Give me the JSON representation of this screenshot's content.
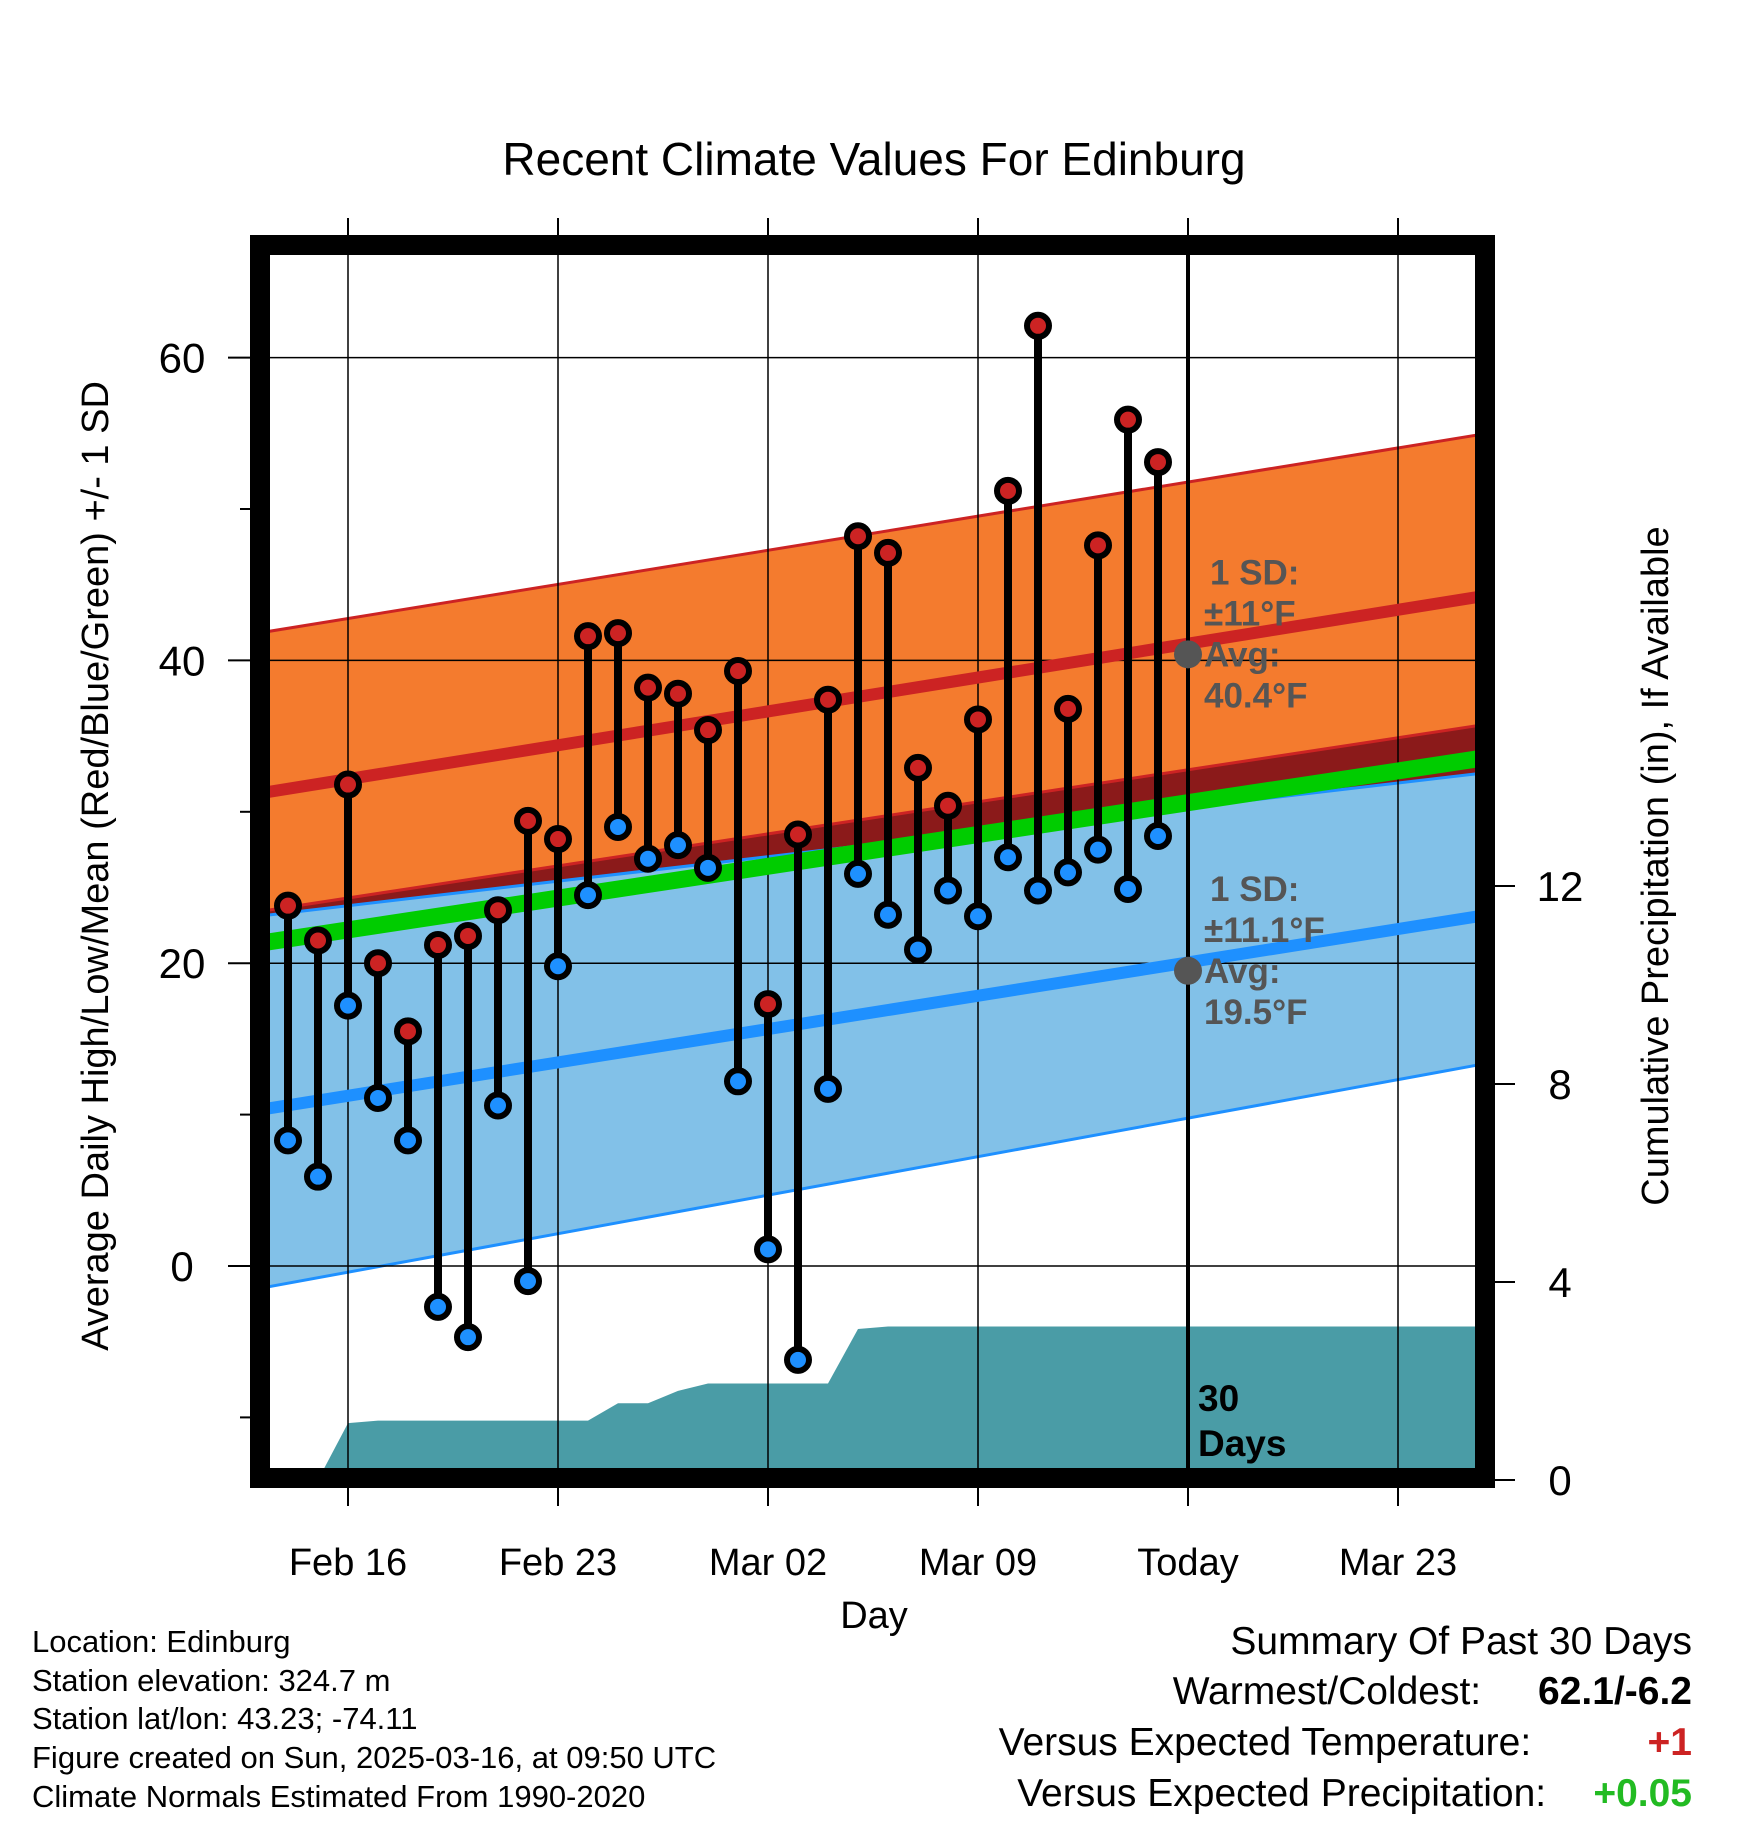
{
  "chart_data": {
    "type": "line",
    "title": "Recent Climate Values For Edinburg",
    "xlabel": "Day",
    "ylabel": "Average Daily High/Low/Mean (Red/Blue/Green) +/- 1 SD",
    "y2label": "Cumulative Precipitation (in), If Available",
    "xlim": [
      -3,
      38
    ],
    "ylim": [
      -14,
      68
    ],
    "y2lim": [
      0,
      17.4
    ],
    "x_ticks": [
      {
        "x": 0,
        "label": "Feb 16"
      },
      {
        "x": 7,
        "label": "Feb 23"
      },
      {
        "x": 14,
        "label": "Mar 02"
      },
      {
        "x": 21,
        "label": "Mar 09"
      },
      {
        "x": 28,
        "label": "Today"
      },
      {
        "x": 35,
        "label": "Mar 23"
      }
    ],
    "y_ticks": [
      0,
      20,
      40,
      60
    ],
    "y2_ticks": [
      0,
      4,
      8,
      12
    ],
    "grid": true,
    "today_x": 28,
    "today_label": "30 Days",
    "days": [
      -2,
      -1,
      0,
      1,
      2,
      3,
      4,
      5,
      6,
      7,
      8,
      9,
      10,
      11,
      12,
      13,
      14,
      15,
      16,
      17,
      18,
      19,
      20,
      21,
      22,
      23,
      24,
      25,
      26,
      27
    ],
    "highs": [
      23.8,
      21.5,
      31.8,
      20.0,
      15.5,
      21.2,
      21.8,
      23.5,
      29.4,
      28.2,
      41.6,
      41.8,
      38.2,
      37.8,
      35.4,
      39.3,
      17.3,
      28.5,
      37.4,
      48.2,
      47.1,
      32.9,
      30.4,
      36.1,
      51.2,
      62.1,
      36.8,
      47.6,
      55.9,
      53.1
    ],
    "lows": [
      8.3,
      5.9,
      17.2,
      11.1,
      8.3,
      -2.7,
      -4.7,
      10.6,
      -1.0,
      19.8,
      24.5,
      29.0,
      26.9,
      27.8,
      26.3,
      12.2,
      1.1,
      -6.2,
      11.7,
      25.9,
      23.2,
      20.9,
      24.8,
      23.1,
      27.0,
      24.8,
      26.0,
      27.5,
      24.9,
      28.4
    ],
    "normals": {
      "x": [
        -3,
        38
      ],
      "high_mean": [
        31.2,
        44.3
      ],
      "high_upper": [
        41.8,
        55.0
      ],
      "high_lower": [
        23.4,
        35.8
      ],
      "low_mean": [
        10.3,
        23.2
      ],
      "low_upper": [
        23.1,
        32.6
      ],
      "low_lower": [
        -1.5,
        13.4
      ],
      "mean_line": [
        21.3,
        33.6
      ]
    },
    "precip_cumulative": {
      "x": [
        -1.0,
        0.0,
        1.0,
        7.0,
        8.0,
        9.0,
        10.0,
        11.0,
        12.0,
        13.0,
        14.0,
        15.0,
        16.0,
        17.0,
        18.0,
        19.0,
        20.0,
        38.0
      ],
      "values": [
        0,
        1.15,
        1.2,
        1.2,
        1.2,
        1.55,
        1.55,
        1.8,
        1.95,
        1.95,
        1.95,
        1.95,
        1.95,
        3.05,
        3.1,
        3.1,
        3.1,
        3.1
      ]
    },
    "annotations": [
      {
        "name": "high-annotation",
        "sd": "1 SD:",
        "sd_value": "±11°F",
        "avg": "Avg:",
        "avg_value": "40.4°F",
        "y": 40.4
      },
      {
        "name": "low-annotation",
        "sd": "1 SD:",
        "sd_value": "±11.1°F",
        "avg": "Avg:",
        "avg_value": "19.5°F",
        "y": 19.5
      }
    ],
    "colors": {
      "high_band": "#f47b2e",
      "high_line": "#cc2323",
      "low_band": "#82c1e8",
      "low_line": "#1e90ff",
      "mean_line": "#00cc00",
      "overlap": "#8b1a1a",
      "precip": "#4a9ca6",
      "high_marker": "#cc2323",
      "low_marker": "#1e90ff",
      "annotation_text": "#555555"
    }
  },
  "info": {
    "location": "Location: Edinburg",
    "elevation": "Station elevation: 324.7 m",
    "latlon": "Station lat/lon: 43.23; -74.11",
    "created": "Figure created on Sun, 2025-03-16, at 09:50 UTC",
    "normals": "Climate Normals Estimated From 1990-2020"
  },
  "summary": {
    "title": "Summary Of Past 30 Days",
    "warmest_label": "Warmest/Coldest:",
    "warmest_value": "62.1/-6.2",
    "temp_label": "Versus Expected Temperature:",
    "temp_value": "+1",
    "temp_color": "#cc2323",
    "precip_label": "Versus Expected Precipitation:",
    "precip_value": "+0.05",
    "precip_color": "#22bb22"
  }
}
